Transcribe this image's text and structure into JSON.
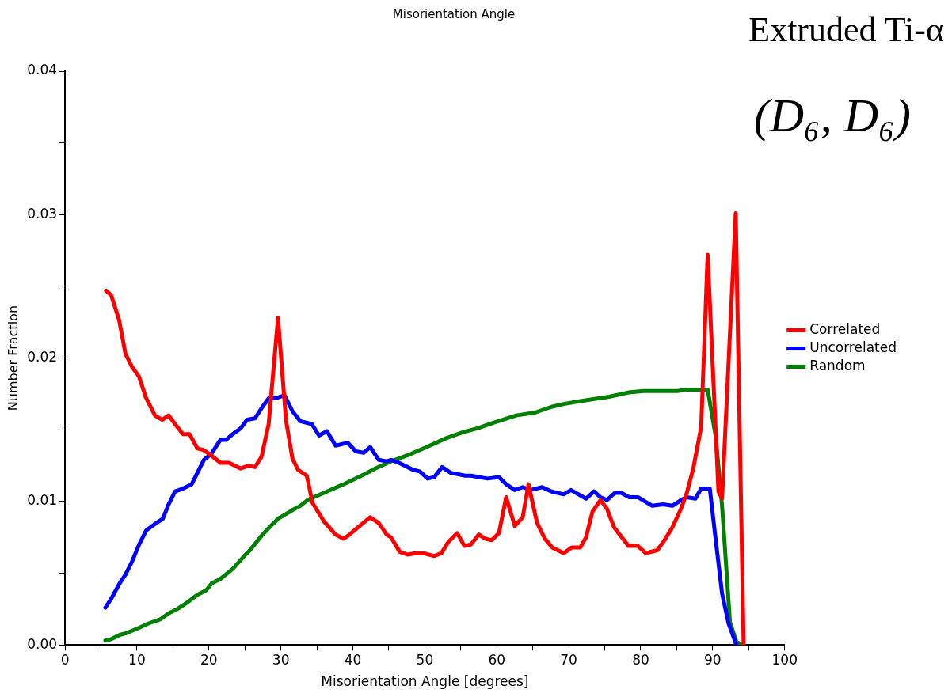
{
  "chart_data": {
    "type": "line",
    "title": "Misorientation Angle",
    "xlabel": "Misorientation Angle [degrees]",
    "ylabel": "Number Fraction",
    "annotations": [
      "Extruded Ti-α",
      "(D₆, D₆)"
    ],
    "xlim": [
      0,
      100
    ],
    "xticks": [
      0,
      {
        "value": 5,
        "label": null
      },
      10,
      {
        "value": 15,
        "label": null
      },
      20,
      {
        "value": 25,
        "label": null
      },
      30,
      {
        "value": 35,
        "label": null
      },
      40,
      {
        "value": 45,
        "label": null
      },
      50,
      {
        "value": 55,
        "label": null
      },
      60,
      {
        "value": 65,
        "label": null
      },
      70,
      {
        "value": 75,
        "label": null
      },
      80,
      {
        "value": 85,
        "label": null
      },
      90,
      {
        "value": 95,
        "label": null
      },
      100
    ],
    "ylim": [
      0,
      0.04
    ],
    "yticks": [
      {
        "value": 0,
        "label": "0.00"
      },
      {
        "value": 0.005,
        "label": null
      },
      {
        "value": 0.01,
        "label": "0.01"
      },
      {
        "value": 0.015,
        "label": null
      },
      {
        "value": 0.02,
        "label": "0.02"
      },
      {
        "value": 0.025,
        "label": null
      },
      {
        "value": 0.03,
        "label": "0.03"
      },
      {
        "value": 0.035,
        "label": null
      },
      {
        "value": 0.04,
        "label": "0.04"
      }
    ],
    "legend": "right",
    "marker": "none",
    "line_style": "solid",
    "series": [
      {
        "name": "Correlated",
        "color": "#ff0000",
        "x": [
          5.7,
          6.4,
          7.5,
          8.4,
          9.3,
          10.3,
          11.2,
          12.5,
          13.5,
          14.4,
          15.3,
          16.4,
          17.3,
          18.4,
          19.2,
          20.1,
          21.6,
          22.8,
          24.4,
          25.5,
          26.4,
          27.3,
          28.3,
          29.6,
          30.7,
          31.6,
          32.4,
          33.6,
          34.4,
          36,
          37.6,
          38.7,
          39.3,
          40.7,
          42.4,
          43.6,
          44.7,
          45.3,
          46.5,
          47.6,
          48.7,
          49.8,
          51.3,
          52.3,
          53.3,
          54.5,
          55.5,
          56.4,
          57.5,
          58.4,
          59.3,
          60.3,
          61.3,
          62.5,
          63.6,
          64.4,
          65.6,
          66.7,
          67.7,
          69.3,
          70.4,
          71.6,
          72.4,
          73.3,
          74.4,
          75.3,
          76.3,
          78.3,
          79.6,
          80.7,
          82.3,
          83.3,
          84.4,
          85.6,
          86.4,
          87.3,
          88.4,
          89.3,
          90.8,
          91.3,
          93.2,
          94.3
        ],
        "values": [
          0.0247,
          0.0244,
          0.0227,
          0.0203,
          0.0194,
          0.0187,
          0.0173,
          0.016,
          0.0157,
          0.016,
          0.0154,
          0.0147,
          0.0147,
          0.0137,
          0.0136,
          0.0133,
          0.0127,
          0.0127,
          0.0123,
          0.0125,
          0.0124,
          0.0131,
          0.0154,
          0.0228,
          0.0157,
          0.013,
          0.0122,
          0.0118,
          0.0099,
          0.0086,
          0.0077,
          0.0074,
          0.0076,
          0.0082,
          0.0089,
          0.0085,
          0.0077,
          0.0075,
          0.0065,
          0.0063,
          0.0064,
          0.0064,
          0.0062,
          0.0064,
          0.0072,
          0.0078,
          0.0069,
          0.007,
          0.0077,
          0.0074,
          0.0073,
          0.0078,
          0.0103,
          0.0083,
          0.0089,
          0.0112,
          0.0085,
          0.0074,
          0.0068,
          0.0064,
          0.0068,
          0.0068,
          0.0075,
          0.0093,
          0.0101,
          0.0095,
          0.0082,
          0.0069,
          0.0069,
          0.0064,
          0.0066,
          0.0073,
          0.0082,
          0.0095,
          0.0106,
          0.0123,
          0.0152,
          0.0272,
          0.0107,
          0.0102,
          0.0301,
          0
        ]
      },
      {
        "name": "Uncorrelated",
        "color": "#0000ff",
        "x": [
          5.6,
          6.4,
          7.6,
          8.4,
          9.3,
          10.3,
          11.3,
          12.4,
          13.6,
          14.4,
          15.3,
          16.4,
          17.6,
          18.4,
          19.3,
          20.3,
          21.6,
          22.4,
          23.3,
          24.4,
          25.3,
          26.4,
          27.3,
          28.3,
          29.3,
          30.5,
          31.6,
          32.7,
          34.3,
          35.3,
          36.4,
          37.6,
          39.3,
          40.4,
          41.5,
          42.4,
          43.6,
          44.7,
          45.3,
          46.4,
          48.4,
          49.3,
          50.4,
          51.3,
          52.4,
          53.6,
          55.6,
          56.4,
          58.7,
          60.3,
          61.3,
          62.5,
          63.6,
          64.7,
          66.3,
          67.6,
          69.3,
          70.3,
          72.4,
          73.5,
          74.4,
          75.3,
          76.4,
          77.3,
          78.4,
          79.6,
          81.6,
          83.1,
          84.4,
          85.6,
          86.4,
          87.6,
          88.4,
          89.6,
          90.4,
          91.3,
          92.2,
          93.3
        ],
        "values": [
          0.0026,
          0.0032,
          0.0043,
          0.0049,
          0.0058,
          0.007,
          0.008,
          0.0084,
          0.0088,
          0.0098,
          0.0107,
          0.0109,
          0.0112,
          0.012,
          0.0129,
          0.0133,
          0.0143,
          0.0143,
          0.0147,
          0.0151,
          0.0157,
          0.0158,
          0.0165,
          0.0172,
          0.0172,
          0.0174,
          0.0163,
          0.0156,
          0.0154,
          0.0146,
          0.0149,
          0.0139,
          0.0141,
          0.0135,
          0.0134,
          0.0138,
          0.0129,
          0.0128,
          0.0129,
          0.0127,
          0.0122,
          0.0121,
          0.0116,
          0.0117,
          0.0124,
          0.012,
          0.0118,
          0.0118,
          0.0116,
          0.0117,
          0.0112,
          0.0108,
          0.011,
          0.0108,
          0.011,
          0.0107,
          0.0105,
          0.0108,
          0.0102,
          0.0107,
          0.0103,
          0.0101,
          0.0106,
          0.0106,
          0.0103,
          0.0103,
          0.0097,
          0.0098,
          0.0097,
          0.0101,
          0.0103,
          0.0102,
          0.0109,
          0.0109,
          0.0074,
          0.0036,
          0.0015,
          0
        ]
      },
      {
        "name": "Random",
        "color": "#008000",
        "x": [
          5.6,
          6.4,
          7.6,
          8.4,
          10.3,
          11.6,
          13.3,
          14.4,
          15.6,
          17.1,
          18.4,
          19.6,
          20.4,
          21.6,
          23.3,
          24.9,
          25.7,
          27.3,
          28.4,
          29.6,
          31.6,
          32.7,
          33.7,
          36.4,
          38.7,
          41.6,
          43.1,
          45.3,
          48,
          50.7,
          52.9,
          55.1,
          57.3,
          59.6,
          62.7,
          65.3,
          67.6,
          69.3,
          71.6,
          75.6,
          78.3,
          80.4,
          82.4,
          85.1,
          86.4,
          89.3,
          90.4,
          91.3,
          92.4,
          93.3,
          94.1
        ],
        "values": [
          0.0003,
          0.0004,
          0.0007,
          0.0008,
          0.0012,
          0.0015,
          0.0018,
          0.0022,
          0.0025,
          0.003,
          0.0035,
          0.0038,
          0.0043,
          0.0046,
          0.0053,
          0.0062,
          0.0066,
          0.0076,
          0.0082,
          0.0088,
          0.0094,
          0.0097,
          0.0101,
          0.0107,
          0.0112,
          0.0119,
          0.0123,
          0.0128,
          0.0133,
          0.0139,
          0.0144,
          0.0148,
          0.0151,
          0.0155,
          0.016,
          0.0162,
          0.0166,
          0.0168,
          0.017,
          0.0173,
          0.0176,
          0.0177,
          0.0177,
          0.0177,
          0.0178,
          0.0178,
          0.0146,
          0.0097,
          0.0016,
          0.0002,
          0
        ]
      }
    ]
  }
}
